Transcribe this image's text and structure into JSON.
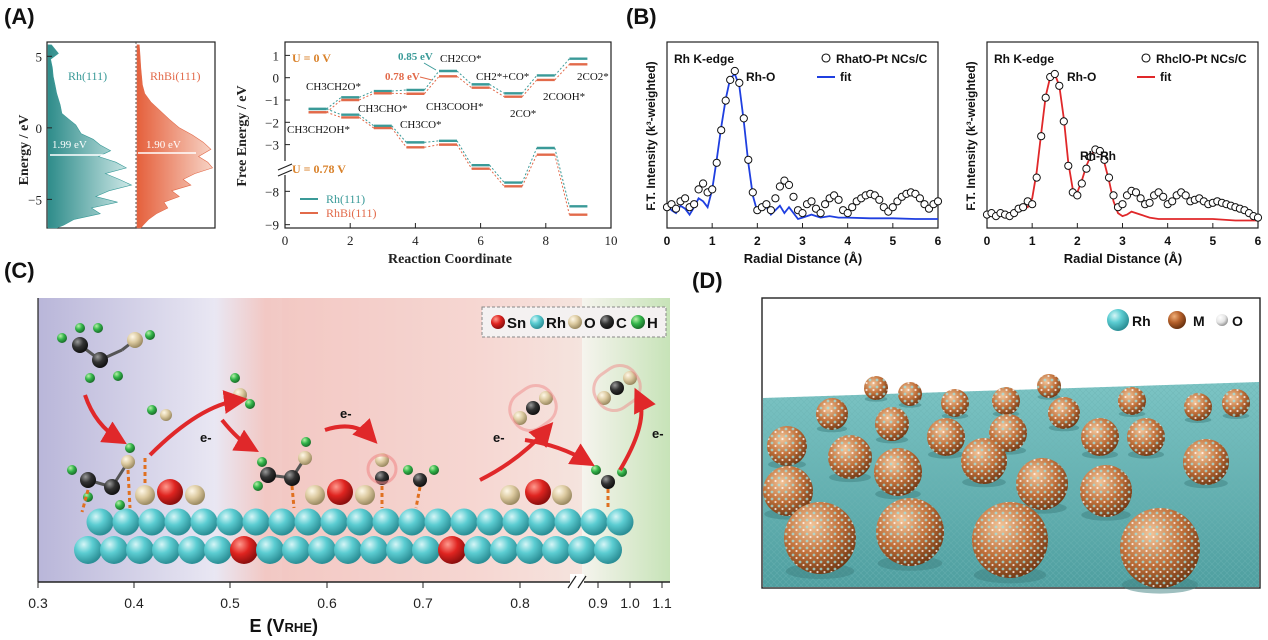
{
  "panels": {
    "A": "(A)",
    "B": "(B)",
    "C": "(C)",
    "D": "(D)"
  },
  "colors": {
    "rh": "#3a9a98",
    "rhbi": "#e26a4a",
    "orange_text": "#d9822b",
    "teal_text": "#3a9a98",
    "blue_fit": "#1f3fe0",
    "red_fit": "#e0282a",
    "sn": "#d8201f",
    "rh_atom": "#58c7cc",
    "o_atom": "#d8c8a0",
    "c_atom": "#333333",
    "h_atom": "#33b54a",
    "m_atom": "#b5602a"
  },
  "chart_data": [
    {
      "id": "A-dos",
      "type": "area",
      "ylabel": "Energy / eV",
      "ylim": [
        -7,
        6
      ],
      "yticks": [
        5,
        0,
        -5
      ],
      "series": [
        {
          "name": "Rh(111)",
          "d_band_center_label": "1.99 eV",
          "d_band_center": -1.99,
          "profile": [
            [
              5.8,
              0.04
            ],
            [
              5.2,
              0.12
            ],
            [
              4.8,
              0.03
            ],
            [
              4.2,
              0.05
            ],
            [
              3.6,
              0.06
            ],
            [
              3.0,
              0.08
            ],
            [
              2.4,
              0.1
            ],
            [
              1.6,
              0.14
            ],
            [
              1.0,
              0.16
            ],
            [
              0.6,
              0.24
            ],
            [
              0.2,
              0.32
            ],
            [
              -0.4,
              0.38
            ],
            [
              -0.8,
              0.52
            ],
            [
              -1.2,
              0.6
            ],
            [
              -1.6,
              0.72
            ],
            [
              -2.0,
              0.58
            ],
            [
              -2.4,
              0.78
            ],
            [
              -2.8,
              0.9
            ],
            [
              -3.2,
              0.66
            ],
            [
              -3.6,
              0.82
            ],
            [
              -4.0,
              0.96
            ],
            [
              -4.4,
              0.7
            ],
            [
              -4.8,
              0.55
            ],
            [
              -5.2,
              0.8
            ],
            [
              -5.6,
              0.5
            ],
            [
              -6.0,
              0.6
            ],
            [
              -6.4,
              0.3
            ],
            [
              -6.8,
              0.18
            ],
            [
              -7.0,
              0.1
            ]
          ]
        },
        {
          "name": "RhBi(111)",
          "d_band_center_label": "1.90 eV",
          "d_band_center": -1.9,
          "profile": [
            [
              5.8,
              0.03
            ],
            [
              5.0,
              0.04
            ],
            [
              4.2,
              0.05
            ],
            [
              3.6,
              0.06
            ],
            [
              3.0,
              0.07
            ],
            [
              2.4,
              0.1
            ],
            [
              1.8,
              0.18
            ],
            [
              1.2,
              0.3
            ],
            [
              0.6,
              0.42
            ],
            [
              0.0,
              0.55
            ],
            [
              -0.5,
              0.72
            ],
            [
              -1.0,
              0.86
            ],
            [
              -1.5,
              0.96
            ],
            [
              -2.0,
              0.8
            ],
            [
              -2.4,
              0.92
            ],
            [
              -2.8,
              0.98
            ],
            [
              -3.2,
              0.75
            ],
            [
              -3.6,
              0.6
            ],
            [
              -4.0,
              0.7
            ],
            [
              -4.4,
              0.45
            ],
            [
              -4.8,
              0.55
            ],
            [
              -5.2,
              0.35
            ],
            [
              -5.6,
              0.4
            ],
            [
              -6.0,
              0.25
            ],
            [
              -6.4,
              0.15
            ],
            [
              -6.8,
              0.08
            ],
            [
              -7.0,
              0.05
            ]
          ]
        }
      ]
    },
    {
      "id": "A-energy",
      "type": "line",
      "xlabel": "Reaction Coordinate",
      "ylabel": "Free Energy / eV",
      "xlim": [
        0,
        10
      ],
      "xticks": [
        0,
        2,
        4,
        6,
        8,
        10
      ],
      "yticks_top": [
        1,
        0,
        -1,
        -2,
        -3
      ],
      "yticks_bottom": [
        -8,
        -9
      ],
      "annotations": {
        "u0": "U = 0 V",
        "u078": "U = 0.78 V",
        "barrier_rh": "0.85 eV",
        "barrier_rhbi": "0.78 eV"
      },
      "species": [
        {
          "label": "CH3CH2OH*",
          "x": 1
        },
        {
          "label": "CH3CH2O*",
          "x": 2
        },
        {
          "label": "CH3CHO*",
          "x": 3
        },
        {
          "label": "CH3CO*",
          "x": 4
        },
        {
          "label": "CH2CO*",
          "x": 5
        },
        {
          "label": "CH3COOH*",
          "x": 5
        },
        {
          "label": "CH2*+CO*",
          "x": 6
        },
        {
          "label": "2CO*",
          "x": 7
        },
        {
          "label": "2COOH*",
          "x": 8
        },
        {
          "label": "2CO2*",
          "x": 9
        }
      ],
      "series": [
        {
          "name": "Rh(111)",
          "u0": [
            -1.4,
            -0.88,
            -0.6,
            -0.55,
            0.3,
            -0.3,
            -0.7,
            0.1,
            0.85
          ],
          "u078": [
            -1.4,
            -1.66,
            -2.16,
            -2.9,
            -2.83,
            -3.92,
            -4.7,
            -6.7,
            -8.45
          ]
        },
        {
          "name": "RhBi(111)",
          "u0": [
            -1.55,
            -1.0,
            -0.7,
            -0.72,
            0.06,
            -0.45,
            -0.85,
            -0.1,
            0.6
          ],
          "u078": [
            -1.55,
            -1.78,
            -2.26,
            -3.12,
            -3.0,
            -4.08,
            -4.87,
            -6.9,
            -8.7
          ]
        }
      ]
    },
    {
      "id": "B-left",
      "type": "line",
      "xlabel": "Radial Distance (Å)",
      "ylabel": "F.T. Intensity (k³-weighted)",
      "xlim": [
        0,
        6
      ],
      "xticks": [
        0,
        1,
        2,
        3,
        4,
        5,
        6
      ],
      "edge_label": "Rh K-edge",
      "legend": {
        "data": "RhatO-Pt NCs/C",
        "fit": "fit"
      },
      "peak_label": "Rh-O",
      "series": [
        {
          "name": "RhatO-Pt NCs/C",
          "x": [
            0,
            0.1,
            0.2,
            0.3,
            0.4,
            0.5,
            0.6,
            0.7,
            0.8,
            0.9,
            1.0,
            1.1,
            1.2,
            1.3,
            1.4,
            1.5,
            1.6,
            1.7,
            1.8,
            1.9,
            2.0,
            2.1,
            2.2,
            2.3,
            2.4,
            2.5,
            2.6,
            2.7,
            2.8,
            2.9,
            3.0,
            3.1,
            3.2,
            3.3,
            3.4,
            3.5,
            3.6,
            3.7,
            3.8,
            3.9,
            4.0,
            4.1,
            4.2,
            4.3,
            4.4,
            4.5,
            4.6,
            4.7,
            4.8,
            4.9,
            5.0,
            5.1,
            5.2,
            5.3,
            5.4,
            5.5,
            5.6,
            5.7,
            5.8,
            5.9,
            6.0
          ],
          "y": [
            0.1,
            0.12,
            0.09,
            0.14,
            0.16,
            0.1,
            0.12,
            0.22,
            0.26,
            0.2,
            0.22,
            0.4,
            0.62,
            0.82,
            0.96,
            1.02,
            0.94,
            0.7,
            0.42,
            0.2,
            0.08,
            0.1,
            0.12,
            0.08,
            0.16,
            0.24,
            0.28,
            0.25,
            0.17,
            0.08,
            0.06,
            0.12,
            0.14,
            0.09,
            0.06,
            0.12,
            0.16,
            0.18,
            0.15,
            0.08,
            0.06,
            0.1,
            0.14,
            0.16,
            0.18,
            0.19,
            0.18,
            0.15,
            0.1,
            0.07,
            0.1,
            0.14,
            0.17,
            0.19,
            0.2,
            0.19,
            0.16,
            0.12,
            0.09,
            0.12,
            0.14
          ]
        },
        {
          "name": "fit",
          "x": [
            0,
            0.1,
            0.2,
            0.3,
            0.4,
            0.5,
            0.6,
            0.7,
            0.8,
            0.9,
            1.0,
            1.1,
            1.2,
            1.3,
            1.4,
            1.5,
            1.6,
            1.7,
            1.8,
            1.9,
            2.0,
            2.1,
            2.2,
            2.3,
            2.4,
            2.5,
            2.6,
            2.7,
            2.8,
            2.9,
            3.0,
            3.2,
            3.4,
            3.6,
            3.8,
            4.0,
            4.5,
            5.0,
            5.5,
            6.0
          ],
          "y": [
            0.12,
            0.08,
            0.06,
            0.11,
            0.09,
            0.05,
            0.1,
            0.16,
            0.14,
            0.1,
            0.22,
            0.42,
            0.64,
            0.83,
            0.97,
            1.0,
            0.92,
            0.68,
            0.4,
            0.18,
            0.07,
            0.12,
            0.1,
            0.05,
            0.08,
            0.11,
            0.06,
            0.1,
            0.06,
            0.02,
            0.03,
            0.05,
            0.03,
            0.04,
            0.03,
            0.03,
            0.025,
            0.025,
            0.02,
            0.02
          ]
        }
      ]
    },
    {
      "id": "B-right",
      "type": "line",
      "xlabel": "Radial Distance (Å)",
      "ylabel": "F.T. Intensity (k³-weighted)",
      "xlim": [
        0,
        6
      ],
      "xticks": [
        0,
        1,
        2,
        3,
        4,
        5,
        6
      ],
      "edge_label": "Rh K-edge",
      "legend": {
        "data": "RhclO-Pt NCs/C",
        "fit": "fit"
      },
      "peak_labels": {
        "first": "Rh-O",
        "second": "Rh-Rh"
      },
      "series": [
        {
          "name": "RhclO-Pt NCs/C",
          "x": [
            0,
            0.1,
            0.2,
            0.3,
            0.4,
            0.5,
            0.6,
            0.7,
            0.8,
            0.9,
            1.0,
            1.1,
            1.2,
            1.3,
            1.4,
            1.5,
            1.6,
            1.7,
            1.8,
            1.9,
            2.0,
            2.1,
            2.2,
            2.3,
            2.4,
            2.5,
            2.6,
            2.7,
            2.8,
            2.9,
            3.0,
            3.1,
            3.2,
            3.3,
            3.4,
            3.5,
            3.6,
            3.7,
            3.8,
            3.9,
            4.0,
            4.1,
            4.2,
            4.3,
            4.4,
            4.5,
            4.6,
            4.7,
            4.8,
            4.9,
            5.0,
            5.1,
            5.2,
            5.3,
            5.4,
            5.5,
            5.6,
            5.7,
            5.8,
            5.9,
            6.0
          ],
          "y": [
            0.05,
            0.06,
            0.04,
            0.06,
            0.05,
            0.04,
            0.06,
            0.09,
            0.1,
            0.14,
            0.12,
            0.3,
            0.58,
            0.84,
            0.98,
            1.0,
            0.92,
            0.68,
            0.38,
            0.2,
            0.18,
            0.26,
            0.36,
            0.44,
            0.49,
            0.48,
            0.42,
            0.3,
            0.18,
            0.1,
            0.12,
            0.18,
            0.21,
            0.2,
            0.16,
            0.12,
            0.13,
            0.18,
            0.2,
            0.17,
            0.12,
            0.14,
            0.18,
            0.2,
            0.18,
            0.14,
            0.15,
            0.16,
            0.14,
            0.12,
            0.13,
            0.14,
            0.13,
            0.12,
            0.11,
            0.1,
            0.09,
            0.08,
            0.06,
            0.04,
            0.03
          ]
        },
        {
          "name": "fit",
          "x": [
            0,
            0.2,
            0.4,
            0.6,
            0.8,
            0.9,
            1.0,
            1.1,
            1.2,
            1.3,
            1.4,
            1.5,
            1.6,
            1.7,
            1.8,
            1.9,
            2.0,
            2.1,
            2.2,
            2.3,
            2.4,
            2.5,
            2.6,
            2.7,
            2.8,
            2.9,
            3.0,
            3.1,
            3.2,
            3.4,
            3.6,
            3.8,
            4.0,
            4.5,
            5.0,
            5.5,
            6.0
          ],
          "y": [
            0.06,
            0.04,
            0.05,
            0.07,
            0.12,
            0.1,
            0.16,
            0.34,
            0.6,
            0.85,
            0.98,
            1.0,
            0.92,
            0.7,
            0.4,
            0.22,
            0.2,
            0.28,
            0.38,
            0.45,
            0.49,
            0.48,
            0.4,
            0.28,
            0.14,
            0.06,
            0.04,
            0.05,
            0.07,
            0.05,
            0.03,
            0.02,
            0.02,
            0.02,
            0.02,
            0.01,
            0.01
          ]
        }
      ]
    },
    {
      "id": "C-schematic-axis",
      "type": "scatter",
      "xlabel_main": "E (V",
      "xlabel_sub": "RHE",
      "xlabel_close": ")",
      "xticks": [
        "0.3",
        "0.4",
        "0.5",
        "0.6",
        "0.7",
        "0.8",
        "0.9",
        "1.0",
        "1.1"
      ],
      "legend": {
        "sn": "Sn",
        "rh": "Rh",
        "o": "O",
        "c": "C",
        "h": "H"
      },
      "electron_label": "e-"
    }
  ],
  "panel_d": {
    "legend": {
      "rh": "Rh",
      "m": "M",
      "o": "O"
    }
  }
}
